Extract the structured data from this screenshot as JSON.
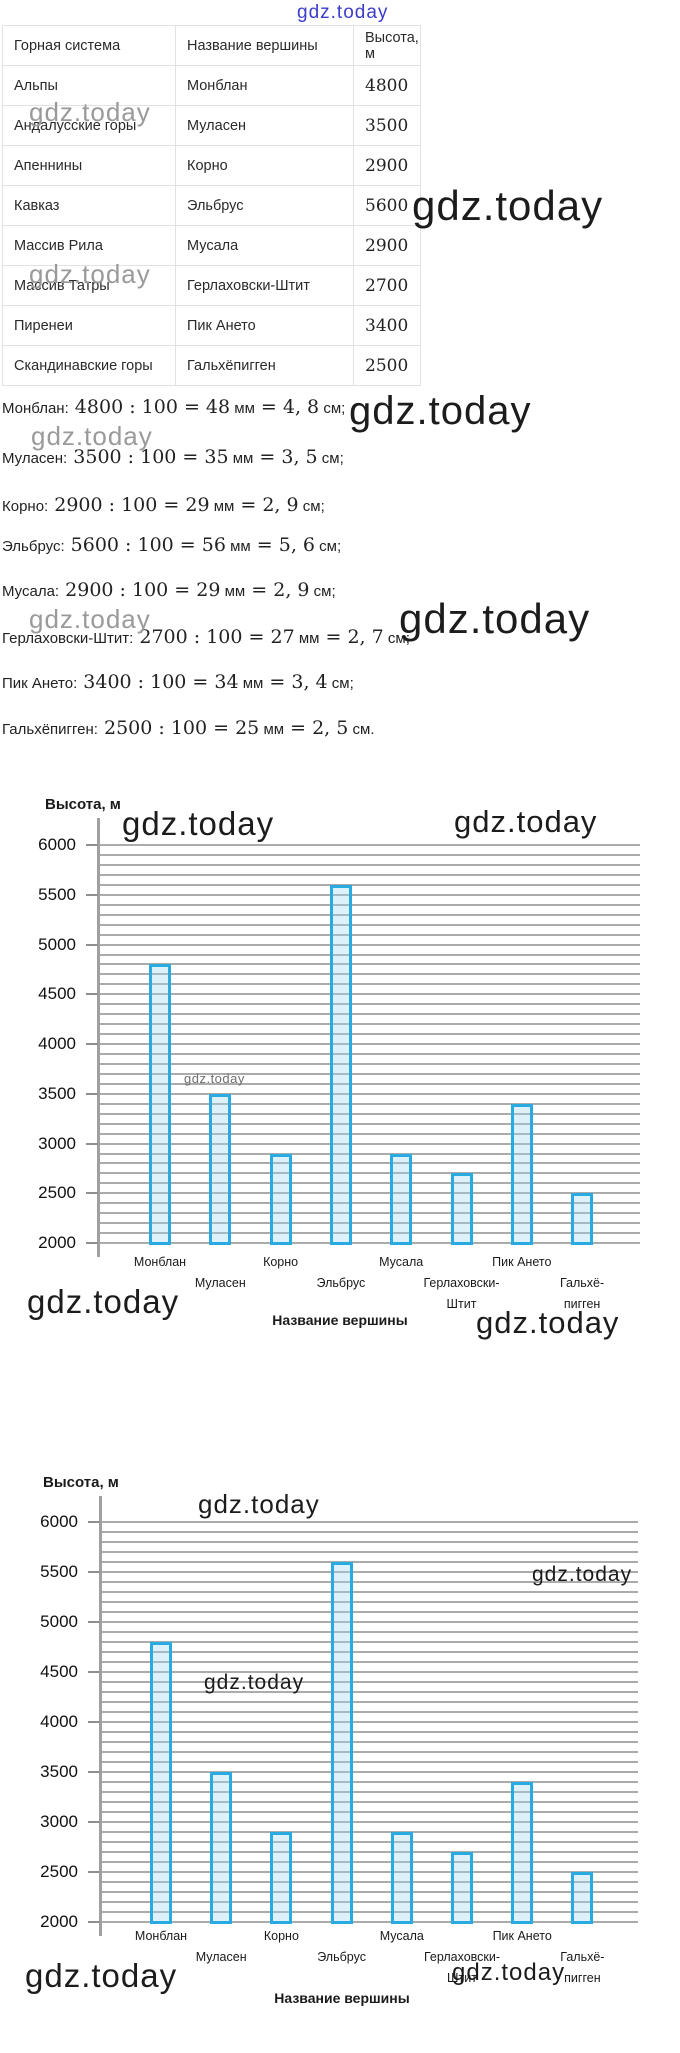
{
  "watermark": {
    "text": "gdz.today",
    "dark": "#1c1c1c",
    "gray": "#9a9a9a",
    "mid": "#6f6f6f",
    "blue": "#3c3ccc"
  },
  "table": {
    "headers": [
      "Горная система",
      "Название вершины",
      "Высота, м"
    ],
    "rows": [
      [
        "Альпы",
        "Монблан",
        "4800"
      ],
      [
        "Андалусские горы",
        "Муласен",
        "3500"
      ],
      [
        "Апеннины",
        "Корно",
        "2900"
      ],
      [
        "Кавказ",
        "Эльбрус",
        "5600"
      ],
      [
        "Массив Рила",
        "Мусала",
        "2900"
      ],
      [
        "Массив Татры",
        "Герлаховски-Штит",
        "2700"
      ],
      [
        "Пиренеи",
        "Пик Ането",
        "3400"
      ],
      [
        "Скандинавские горы",
        "Гальхёпигген",
        "2500"
      ]
    ]
  },
  "calculations": [
    {
      "label": "Монблан:",
      "expr1": "4800 : 100 = 48",
      "unit1": "мм",
      "expr2": "= 4, 8",
      "unit2": "см;"
    },
    {
      "label": "Муласен:",
      "expr1": "3500 : 100 = 35",
      "unit1": "мм",
      "expr2": "= 3, 5",
      "unit2": "см;"
    },
    {
      "label": "Корно:",
      "expr1": "2900 : 100 = 29",
      "unit1": "мм",
      "expr2": "= 2, 9",
      "unit2": "см;"
    },
    {
      "label": "Эльбрус:",
      "expr1": "5600 : 100 = 56",
      "unit1": "мм",
      "expr2": "= 5, 6",
      "unit2": "см;"
    },
    {
      "label": "Мусала:",
      "expr1": "2900 : 100 = 29",
      "unit1": "мм",
      "expr2": "= 2, 9",
      "unit2": "см;"
    },
    {
      "label": "Герлаховски-Штит:",
      "expr1": "2700 : 100 = 27",
      "unit1": "мм",
      "expr2": "= 2, 7",
      "unit2": "см;"
    },
    {
      "label": "Пик Ането:",
      "expr1": "3400 : 100 = 34",
      "unit1": "мм",
      "expr2": "= 3, 4",
      "unit2": "см;"
    },
    {
      "label": "Гальхёпигген:",
      "expr1": "2500 : 100 = 25",
      "unit1": "мм",
      "expr2": "= 2, 5",
      "unit2": "см."
    }
  ],
  "chart_data": [
    {
      "type": "bar",
      "title": "",
      "ylabel": "Высота, м",
      "xlabel": "Название вершины",
      "categories": [
        "Монблан",
        "Муласен",
        "Корно",
        "Эльбрус",
        "Мусала",
        "Герлаховски-Штит",
        "Пик Ането",
        "Гальхёпигген"
      ],
      "tick_label_lines": [
        [
          "Монблан"
        ],
        [
          "Муласен"
        ],
        [
          "Корно"
        ],
        [
          "Эльбрус"
        ],
        [
          "Мусала"
        ],
        [
          "Герлаховски-",
          "Штит"
        ],
        [
          "Пик Ането"
        ],
        [
          "Гальхё-",
          "пигген"
        ]
      ],
      "values": [
        4800,
        3500,
        2900,
        5600,
        2900,
        2700,
        3400,
        2500
      ],
      "ylim": [
        2000,
        6000
      ],
      "ytick_step": 500,
      "grid_step": 100,
      "grid": true,
      "legend": null,
      "bar_border_color": "#29abe2",
      "bar_fill_color": "rgba(158,216,240,0.35)"
    },
    {
      "type": "bar",
      "title": "",
      "ylabel": "Высота, м",
      "xlabel": "Название вершины",
      "categories": [
        "Монблан",
        "Муласен",
        "Корно",
        "Эльбрус",
        "Мусала",
        "Герлаховски-Штит",
        "Пик Ането",
        "Гальхёпигген"
      ],
      "tick_label_lines": [
        [
          "Монблан"
        ],
        [
          "Муласен"
        ],
        [
          "Корно"
        ],
        [
          "Эльбрус"
        ],
        [
          "Мусала"
        ],
        [
          "Герлаховски-",
          "Штит"
        ],
        [
          "Пик Ането"
        ],
        [
          "Гальхё-",
          "пигген"
        ]
      ],
      "values": [
        4800,
        3500,
        2900,
        5600,
        2900,
        2700,
        3400,
        2500
      ],
      "ylim": [
        2000,
        6000
      ],
      "ytick_step": 500,
      "grid_step": 100,
      "grid": true,
      "legend": null,
      "bar_border_color": "#29abe2",
      "bar_fill_color": "rgba(158,216,240,0.35)"
    }
  ]
}
